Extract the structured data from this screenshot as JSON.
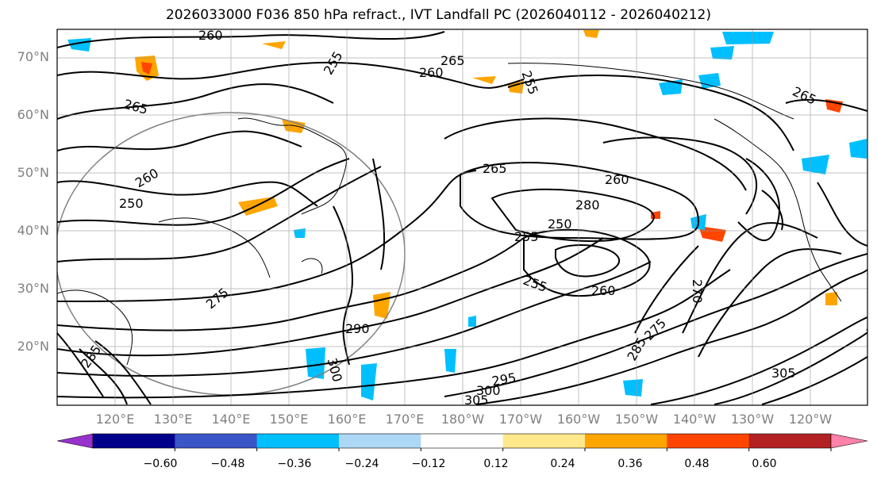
{
  "title": "2026033000 F036 850 hPa refract., IVT Landfall PC (2026040112 - 2026040212)",
  "lat_labels": [
    "70°N",
    "60°N",
    "50°N",
    "40°N",
    "30°N",
    "20°N"
  ],
  "lon_labels": [
    "120°E",
    "130°E",
    "140°E",
    "150°E",
    "160°E",
    "170°E",
    "180°W",
    "170°W",
    "160°W",
    "150°W",
    "140°W",
    "130°W",
    "120°W"
  ],
  "colorbar": {
    "colors": [
      "#9932cc",
      "#00008b",
      "#3a55c8",
      "#00bfff",
      "#add8f5",
      "#ffffff",
      "#ffe88c",
      "#ffa500",
      "#ff4500",
      "#b22222",
      "#ff82aa"
    ],
    "tick_labels": [
      "−0.60",
      "−0.48",
      "−0.36",
      "−0.24",
      "−0.12",
      "0.12",
      "0.24",
      "0.36",
      "0.48",
      "0.60"
    ],
    "extend": "both"
  },
  "contour_labels": [
    "260",
    "265",
    "255",
    "260",
    "265",
    "255",
    "260",
    "265",
    "250",
    "260",
    "265",
    "250",
    "255",
    "280",
    "255",
    "260",
    "270",
    "275",
    "285",
    "290",
    "295",
    "300",
    "305",
    "305",
    "300",
    "285",
    "275"
  ]
}
